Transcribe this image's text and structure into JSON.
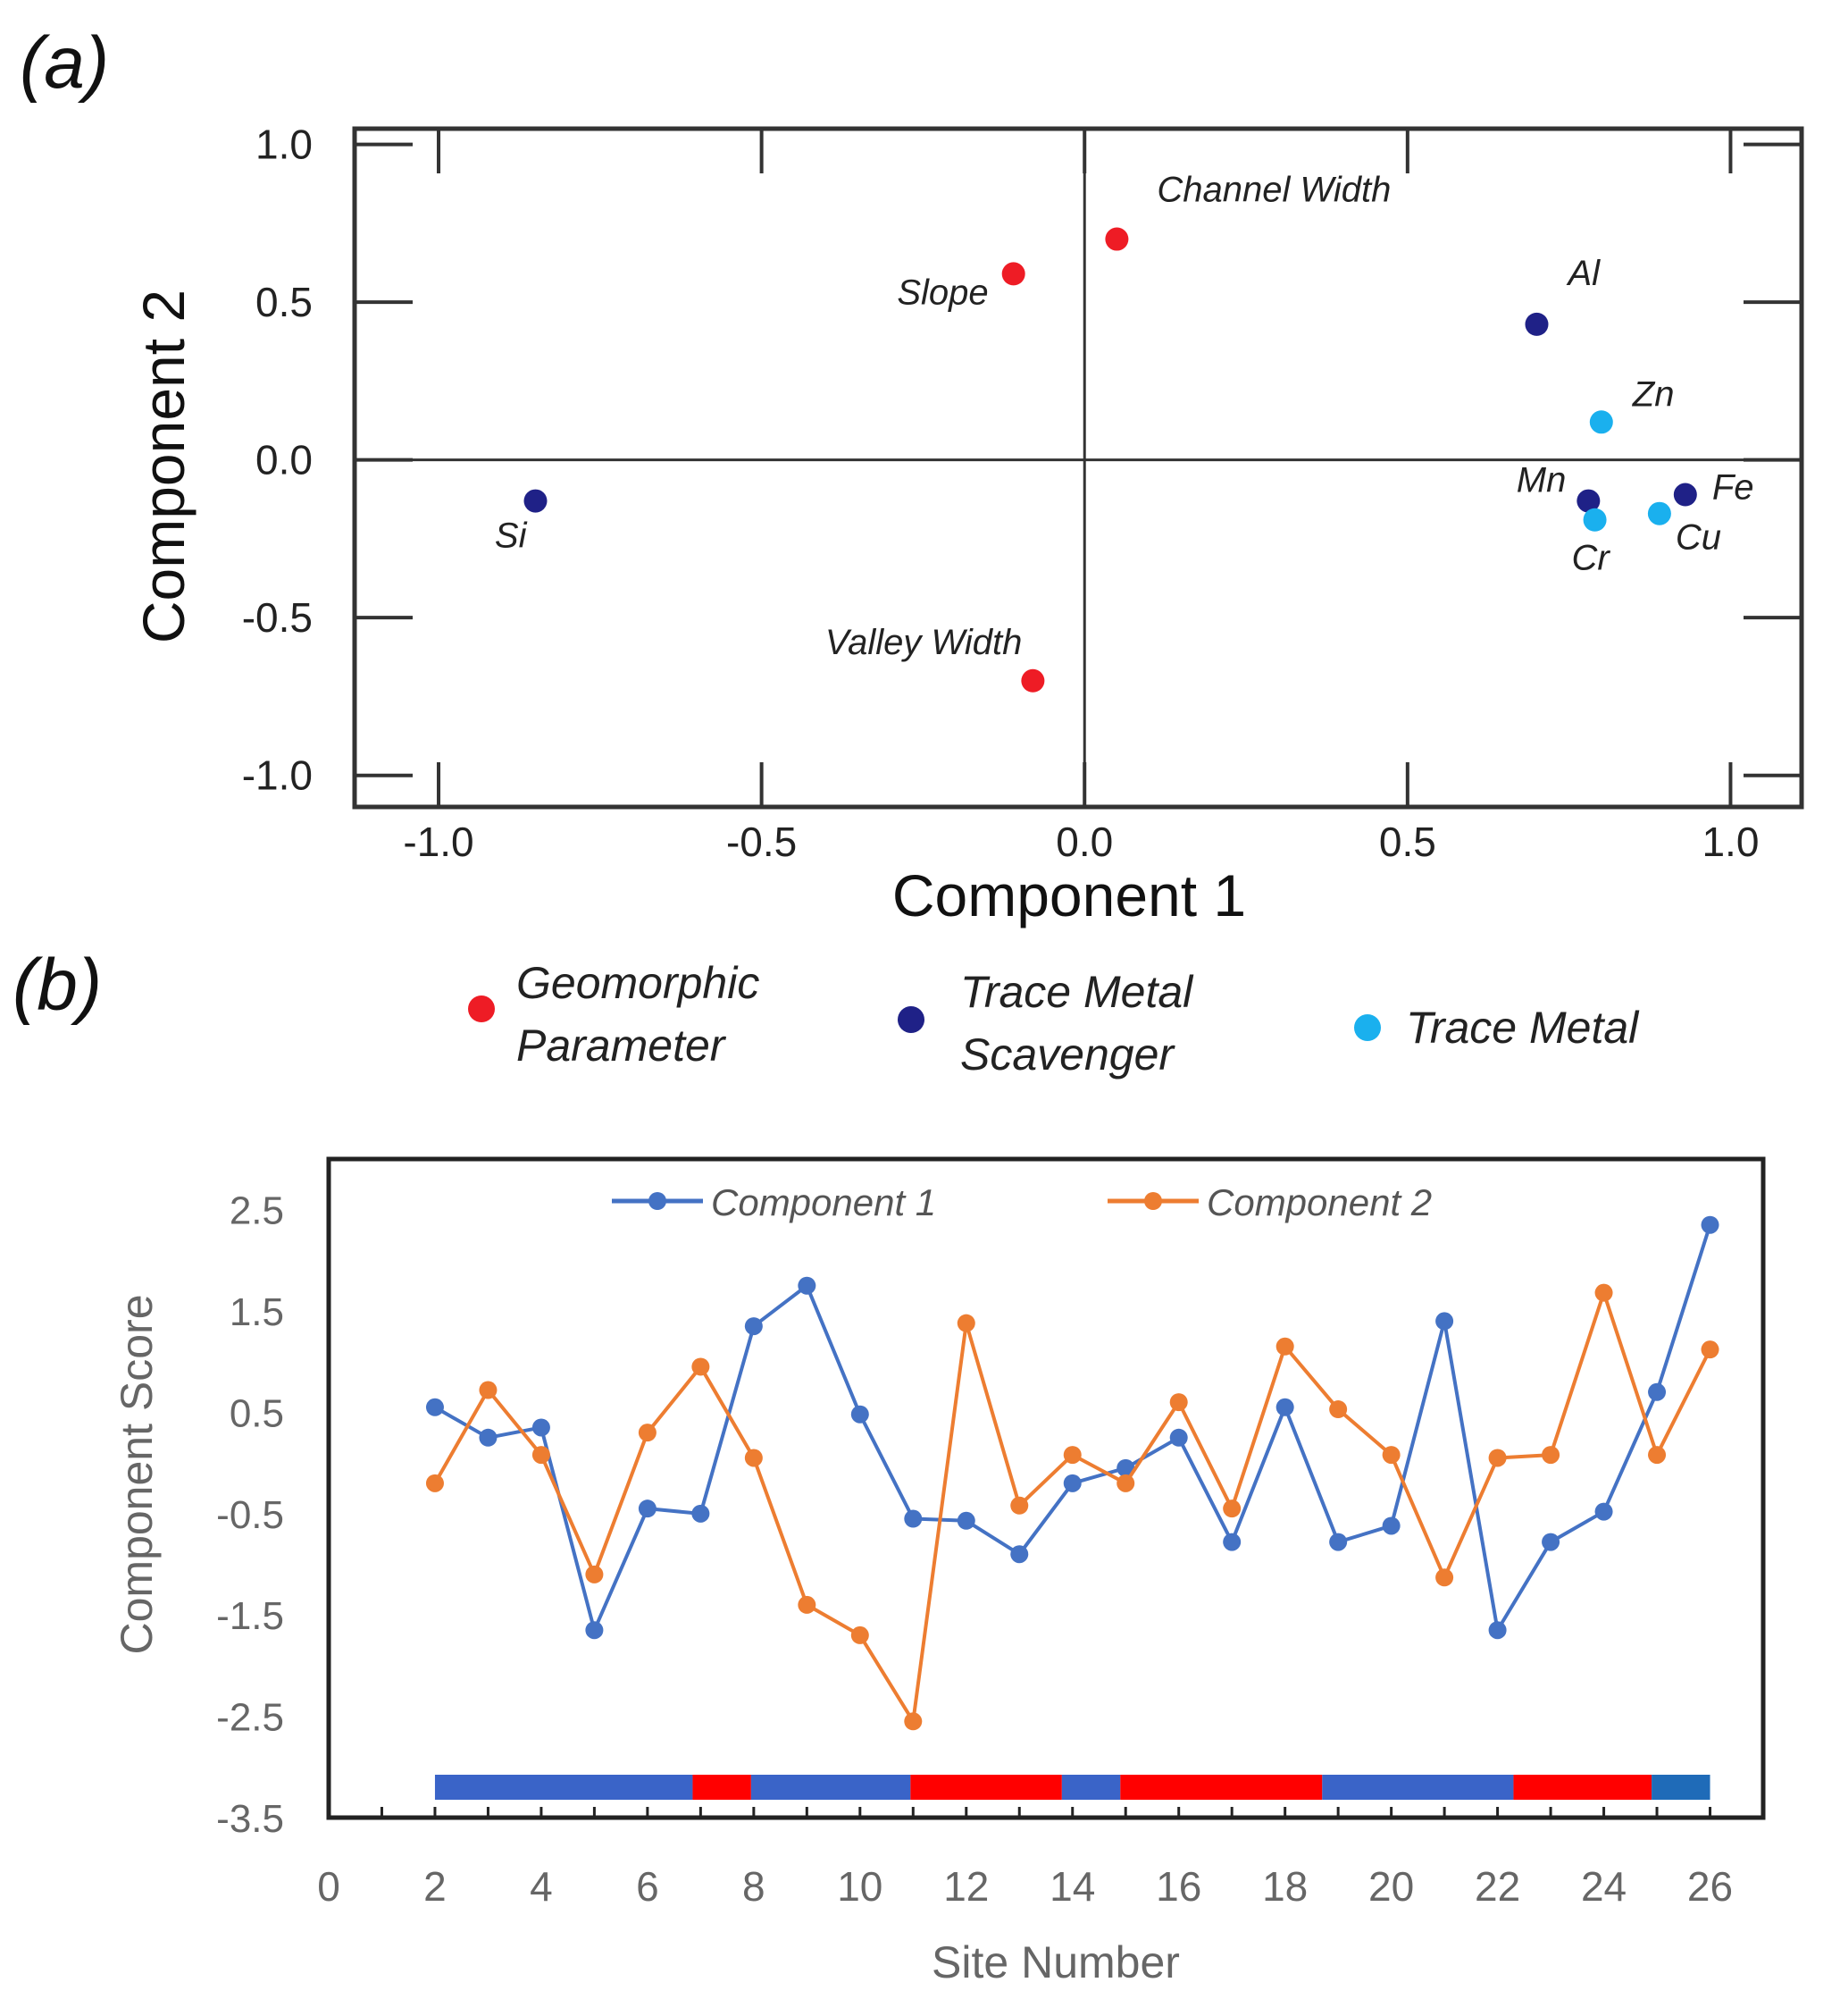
{
  "panel_labels": {
    "a": "(a)",
    "b": "(b)"
  },
  "colors": {
    "geomorphic": "#ee1c25",
    "scavenger": "#1f2187",
    "trace_metal": "#1ab0ee",
    "component1": "#4472c4",
    "component2": "#ed7d31",
    "band_blue": "#3a64c8",
    "band_red": "#ff0000",
    "band_last": "#1f6bb8"
  },
  "legend": [
    {
      "group": "geomorphic",
      "lines": [
        "Geomorphic",
        "Parameter"
      ]
    },
    {
      "group": "scavenger",
      "lines": [
        "Trace Metal",
        "Scavenger"
      ]
    },
    {
      "group": "trace_metal",
      "lines": [
        "Trace Metal"
      ]
    }
  ],
  "chart_data": [
    {
      "type": "scatter",
      "xlabel": "Component 1",
      "ylabel": "Component 2",
      "xlim": [
        -1.13,
        1.11
      ],
      "ylim": [
        -1.1,
        1.05
      ],
      "xticks": [
        -1.0,
        -0.5,
        0.0,
        0.5,
        1.0
      ],
      "xtick_labels": [
        "-1.0",
        "-0.5",
        "0.0",
        "0.5",
        "1.0"
      ],
      "yticks": [
        1.0,
        0.5,
        0.0,
        -0.5,
        -1.0
      ],
      "ytick_labels": [
        "1.0",
        "0.5",
        "0.0",
        "-0.5",
        "-1.0"
      ],
      "points": [
        {
          "label": "Channel Width",
          "x": 0.05,
          "y": 0.7,
          "group": "geomorphic"
        },
        {
          "label": "Slope",
          "x": -0.11,
          "y": 0.59,
          "group": "geomorphic"
        },
        {
          "label": "Valley Width",
          "x": -0.08,
          "y": -0.7,
          "group": "geomorphic"
        },
        {
          "label": "Si",
          "x": -0.85,
          "y": -0.13,
          "group": "scavenger"
        },
        {
          "label": "Al",
          "x": 0.7,
          "y": 0.43,
          "group": "scavenger"
        },
        {
          "label": "Mn",
          "x": 0.78,
          "y": -0.13,
          "group": "scavenger"
        },
        {
          "label": "Fe",
          "x": 0.93,
          "y": -0.11,
          "group": "scavenger"
        },
        {
          "label": "Zn",
          "x": 0.8,
          "y": 0.12,
          "group": "trace_metal"
        },
        {
          "label": "Cr",
          "x": 0.79,
          "y": -0.19,
          "group": "trace_metal"
        },
        {
          "label": "Cu",
          "x": 0.89,
          "y": -0.17,
          "group": "trace_metal"
        }
      ]
    },
    {
      "type": "line",
      "xlabel": "Site Number",
      "ylabel": "Component Score",
      "xlim": [
        0,
        27
      ],
      "ylim": [
        -3.5,
        3.0
      ],
      "xticks": [
        0,
        2,
        4,
        6,
        8,
        10,
        12,
        14,
        16,
        18,
        20,
        22,
        24,
        26
      ],
      "xtick_labels": [
        "0",
        "2",
        "4",
        "6",
        "8",
        "10",
        "12",
        "14",
        "16",
        "18",
        "20",
        "22",
        "24",
        "26"
      ],
      "yticks": [
        2.5,
        1.5,
        0.5,
        -0.5,
        -1.5,
        -2.5,
        -3.5
      ],
      "ytick_labels": [
        "2.5",
        "1.5",
        "0.5",
        "-0.5",
        "-1.5",
        "-2.5",
        "-3.5"
      ],
      "x": [
        2,
        3,
        4,
        5,
        6,
        7,
        8,
        9,
        10,
        11,
        12,
        13,
        14,
        15,
        16,
        17,
        18,
        19,
        20,
        21,
        22,
        23,
        24,
        25,
        26
      ],
      "series": [
        {
          "name": "Component 1",
          "color_key": "component1",
          "values": [
            0.55,
            0.25,
            0.35,
            -1.65,
            -0.45,
            -0.5,
            1.35,
            1.75,
            0.48,
            -0.55,
            -0.57,
            -0.9,
            -0.2,
            -0.05,
            0.25,
            -0.78,
            0.55,
            -0.78,
            -0.62,
            1.4,
            -1.65,
            -0.78,
            -0.48,
            0.7,
            2.35
          ]
        },
        {
          "name": "Component 2",
          "color_key": "component2",
          "values": [
            -0.2,
            0.72,
            0.08,
            -1.1,
            0.3,
            0.95,
            0.05,
            -1.4,
            -1.7,
            -2.55,
            1.38,
            -0.42,
            0.08,
            -0.2,
            0.6,
            -0.45,
            1.15,
            0.53,
            0.08,
            -1.13,
            0.05,
            0.08,
            1.68,
            0.08,
            1.12
          ]
        }
      ],
      "bands": [
        {
          "x0": 2,
          "x1": 6.85,
          "color_key": "band_blue"
        },
        {
          "x0": 6.85,
          "x1": 7.95,
          "color_key": "band_red"
        },
        {
          "x0": 7.95,
          "x1": 10.95,
          "color_key": "band_blue"
        },
        {
          "x0": 10.95,
          "x1": 13.8,
          "color_key": "band_red"
        },
        {
          "x0": 13.8,
          "x1": 14.9,
          "color_key": "band_blue"
        },
        {
          "x0": 14.9,
          "x1": 18.7,
          "color_key": "band_red"
        },
        {
          "x0": 18.7,
          "x1": 22.3,
          "color_key": "band_blue"
        },
        {
          "x0": 22.3,
          "x1": 24.9,
          "color_key": "band_red"
        },
        {
          "x0": 24.9,
          "x1": 26,
          "color_key": "band_last"
        }
      ]
    }
  ]
}
